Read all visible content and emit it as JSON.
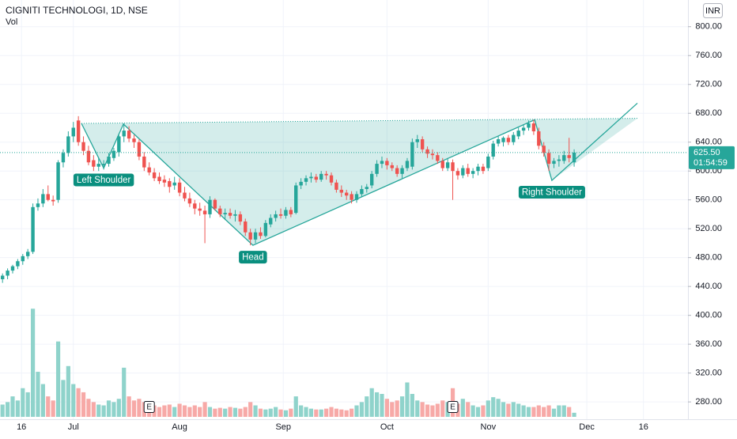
{
  "chart_data": {
    "type": "candlestick",
    "title": "CIGNITI TECHNOLOGI, 1D, NSE",
    "volume_label": "Vol",
    "currency": "INR",
    "xlim": [
      -0.5,
      135.5
    ],
    "ylim": [
      256,
      837
    ],
    "yticks": [
      {
        "value": 800,
        "label": "800.00"
      },
      {
        "value": 760,
        "label": "760.00"
      },
      {
        "value": 720,
        "label": "720.00"
      },
      {
        "value": 680,
        "label": "680.00"
      },
      {
        "value": 640,
        "label": "640.00"
      },
      {
        "value": 600,
        "label": "600.00"
      },
      {
        "value": 560,
        "label": "560.00"
      },
      {
        "value": 520,
        "label": "520.00"
      },
      {
        "value": 480,
        "label": "480.00"
      },
      {
        "value": 440,
        "label": "440.00"
      },
      {
        "value": 400,
        "label": "400.00"
      },
      {
        "value": 360,
        "label": "360.00"
      },
      {
        "value": 320,
        "label": "320.00"
      },
      {
        "value": 280,
        "label": "280.00"
      }
    ],
    "xticks": [
      {
        "value": 3.75,
        "label": "16"
      },
      {
        "value": 14,
        "label": "Jul"
      },
      {
        "value": 35,
        "label": "Aug"
      },
      {
        "value": 55.5,
        "label": "Sep"
      },
      {
        "value": 76,
        "label": "Oct"
      },
      {
        "value": 96,
        "label": "Nov"
      },
      {
        "value": 115.5,
        "label": "Dec"
      },
      {
        "value": 126.7,
        "label": "16"
      }
    ],
    "grid": true,
    "up_color": "#26a69a",
    "down_color": "#ef5350",
    "volume_up_color": "#8fd3cb",
    "volume_down_color": "#f7a9a7",
    "volume_ylim": [
      0,
      140
    ],
    "open": [
      450,
      455,
      462,
      468,
      475,
      482,
      488,
      550,
      555,
      568,
      560,
      560,
      612,
      625,
      648,
      670,
      640,
      628,
      615,
      606,
      608,
      610,
      618,
      626,
      648,
      656,
      645,
      640,
      620,
      605,
      598,
      592,
      588,
      586,
      580,
      584,
      570,
      562,
      555,
      548,
      545,
      540,
      560,
      548,
      540,
      542,
      538,
      540,
      530,
      515,
      505,
      515,
      510,
      526,
      535,
      540,
      538,
      546,
      542,
      580,
      585,
      590,
      592,
      588,
      596,
      594,
      584,
      574,
      570,
      568,
      560,
      568,
      575,
      580,
      596,
      610,
      614,
      608,
      604,
      596,
      604,
      606,
      640,
      644,
      630,
      624,
      622,
      614,
      604,
      612,
      600,
      594,
      604,
      596,
      600,
      606,
      604,
      620,
      638,
      640,
      646,
      640,
      648,
      656,
      660,
      666,
      655,
      635,
      625,
      610,
      614,
      614,
      622,
      612
    ],
    "high": [
      458,
      465,
      470,
      478,
      485,
      492,
      555,
      562,
      575,
      580,
      566,
      615,
      630,
      655,
      668,
      676,
      648,
      635,
      622,
      618,
      615,
      625,
      632,
      652,
      666,
      662,
      650,
      644,
      626,
      612,
      604,
      598,
      594,
      590,
      592,
      590,
      578,
      570,
      560,
      556,
      552,
      565,
      562,
      552,
      548,
      548,
      546,
      544,
      534,
      520,
      520,
      522,
      532,
      540,
      545,
      548,
      550,
      550,
      584,
      590,
      594,
      598,
      596,
      600,
      600,
      598,
      588,
      580,
      574,
      572,
      572,
      580,
      582,
      600,
      615,
      620,
      618,
      612,
      608,
      608,
      618,
      645,
      650,
      648,
      634,
      630,
      626,
      618,
      618,
      616,
      604,
      608,
      610,
      604,
      610,
      610,
      624,
      642,
      648,
      648,
      650,
      654,
      660,
      664,
      670,
      671,
      660,
      640,
      630,
      618,
      622,
      628,
      646,
      630
    ],
    "low": [
      445,
      450,
      458,
      464,
      470,
      478,
      485,
      545,
      550,
      558,
      552,
      556,
      605,
      620,
      640,
      635,
      622,
      608,
      600,
      600,
      602,
      606,
      614,
      620,
      640,
      640,
      632,
      615,
      600,
      594,
      586,
      582,
      578,
      570,
      574,
      565,
      558,
      550,
      540,
      538,
      500,
      535,
      545,
      536,
      532,
      534,
      530,
      525,
      510,
      497,
      500,
      506,
      508,
      522,
      530,
      534,
      534,
      536,
      540,
      575,
      580,
      584,
      584,
      585,
      588,
      580,
      570,
      564,
      560,
      555,
      556,
      564,
      570,
      576,
      592,
      604,
      602,
      600,
      592,
      590,
      600,
      602,
      632,
      626,
      618,
      616,
      610,
      600,
      600,
      560,
      588,
      590,
      592,
      590,
      594,
      596,
      600,
      616,
      634,
      634,
      636,
      636,
      644,
      650,
      656,
      650,
      630,
      620,
      600,
      604,
      606,
      610,
      612,
      606
    ],
    "close": [
      455,
      462,
      468,
      475,
      482,
      488,
      550,
      555,
      568,
      560,
      558,
      612,
      625,
      648,
      660,
      640,
      628,
      612,
      606,
      610,
      610,
      620,
      628,
      648,
      656,
      645,
      640,
      620,
      605,
      598,
      590,
      586,
      584,
      578,
      584,
      570,
      562,
      555,
      548,
      545,
      540,
      560,
      548,
      540,
      542,
      538,
      540,
      530,
      515,
      505,
      515,
      510,
      528,
      535,
      540,
      538,
      546,
      540,
      580,
      585,
      590,
      592,
      588,
      596,
      594,
      584,
      574,
      570,
      566,
      560,
      568,
      575,
      578,
      596,
      610,
      614,
      608,
      604,
      596,
      604,
      614,
      640,
      644,
      630,
      624,
      622,
      614,
      604,
      612,
      600,
      594,
      604,
      596,
      600,
      606,
      600,
      620,
      638,
      644,
      646,
      640,
      650,
      656,
      660,
      666,
      655,
      635,
      625,
      610,
      614,
      616,
      622,
      618,
      625.5
    ],
    "volume": [
      15,
      18,
      25,
      20,
      35,
      30,
      132,
      55,
      40,
      25,
      20,
      92,
      45,
      62,
      40,
      35,
      30,
      22,
      18,
      15,
      14,
      20,
      18,
      22,
      60,
      25,
      20,
      22,
      18,
      12,
      14,
      12,
      14,
      15,
      12,
      16,
      14,
      12,
      14,
      12,
      18,
      12,
      10,
      11,
      10,
      12,
      11,
      10,
      12,
      18,
      14,
      10,
      9,
      10,
      12,
      9,
      8,
      10,
      25,
      14,
      12,
      10,
      9,
      9,
      10,
      12,
      10,
      9,
      8,
      10,
      14,
      18,
      25,
      35,
      30,
      28,
      22,
      18,
      20,
      25,
      42,
      28,
      20,
      18,
      15,
      14,
      16,
      20,
      18,
      35,
      16,
      22,
      18,
      14,
      12,
      14,
      20,
      24,
      22,
      18,
      16,
      18,
      16,
      14,
      12,
      12,
      14,
      12,
      14,
      10,
      14,
      14,
      12,
      5
    ],
    "events": [
      {
        "index": 29,
        "label": "E"
      },
      {
        "index": 89,
        "label": "E"
      }
    ],
    "last_price": {
      "value": 625.5,
      "label": "625.50"
    },
    "countdown": "01:54:59",
    "pattern": {
      "color": "#26a69a",
      "points": [
        {
          "x": 15.6,
          "y": 666
        },
        {
          "x": 20,
          "y": 604,
          "label": "Left Shoulder"
        },
        {
          "x": 23.9,
          "y": 665
        },
        {
          "x": 49.5,
          "y": 497,
          "label": "Head"
        },
        {
          "x": 105.2,
          "y": 671
        },
        {
          "x": 108.6,
          "y": 587,
          "label": "Right Shoulder"
        },
        {
          "x": 125.5,
          "y": 694
        }
      ],
      "neckline": [
        {
          "x": 15.6,
          "y": 666
        },
        {
          "x": 125.5,
          "y": 673
        }
      ]
    }
  }
}
